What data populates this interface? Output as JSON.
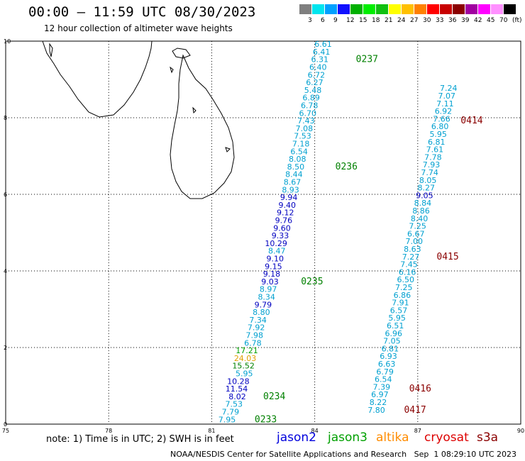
{
  "title": "00:00 – 11:59 UTC 08/30/2023",
  "subtitle": "12 hour collection of altimeter wave heights",
  "colorbar": {
    "labels": [
      "3",
      "6",
      "9",
      "12",
      "15",
      "18",
      "21",
      "24",
      "27",
      "30",
      "33",
      "36",
      "39",
      "42",
      "45",
      "70",
      "(ft)"
    ],
    "colors": [
      "#7f7f7f",
      "#00e5ee",
      "#00a0ff",
      "#1010ff",
      "#00b000",
      "#00ee00",
      "#10c010",
      "#ffff00",
      "#ffc000",
      "#ff8000",
      "#ff0000",
      "#c80000",
      "#8b0000",
      "#a000a0",
      "#ff00ff",
      "#ff90ff",
      "#000000"
    ]
  },
  "axes": {
    "x_ticks": [
      "75",
      "78",
      "81",
      "84",
      "87",
      "90"
    ],
    "y_ticks": [
      "0",
      "2",
      "4",
      "6",
      "8",
      "10"
    ]
  },
  "tracks": [
    {
      "pass": "0233",
      "values": [
        {
          "lat": 0.05,
          "lon": 81.7,
          "v": "7.95",
          "c": "#00a0d0"
        },
        {
          "lat": 0.25,
          "lon": 81.8,
          "v": "7.79",
          "c": "#00a0d0"
        },
        {
          "lat": 0.45,
          "lon": 81.9,
          "v": "7.53",
          "c": "#00a0d0"
        },
        {
          "lat": 0.65,
          "lon": 82.0,
          "v": "8.02",
          "c": "#0000c0"
        },
        {
          "lat": 0.85,
          "lon": 82.05,
          "v": "11.54",
          "c": "#0000c0"
        },
        {
          "lat": 1.05,
          "lon": 82.1,
          "v": "10.28",
          "c": "#0000c0"
        },
        {
          "lat": 1.25,
          "lon": 82.2,
          "v": "5.95",
          "c": "#00a0d0"
        },
        {
          "lat": 1.45,
          "lon": 82.25,
          "v": "15.52",
          "c": "#008000"
        },
        {
          "lat": 1.65,
          "lon": 82.3,
          "v": "24.03",
          "c": "#e0a000"
        },
        {
          "lat": 1.85,
          "lon": 82.35,
          "v": "17.21",
          "c": "#00a000"
        },
        {
          "lat": 2.05,
          "lon": 82.45,
          "v": "6.78",
          "c": "#00a0d0"
        },
        {
          "lat": 2.25,
          "lon": 82.5,
          "v": "7.98",
          "c": "#00a0d0"
        },
        {
          "lat": 2.45,
          "lon": 82.55,
          "v": "7.92",
          "c": "#00a0d0"
        },
        {
          "lat": 2.65,
          "lon": 82.6,
          "v": "7.34",
          "c": "#00a0d0"
        },
        {
          "lat": 2.85,
          "lon": 82.7,
          "v": "8.80",
          "c": "#00a0d0"
        },
        {
          "lat": 3.05,
          "lon": 82.75,
          "v": "9.79",
          "c": "#0000c0"
        },
        {
          "lat": 3.25,
          "lon": 82.85,
          "v": "8.34",
          "c": "#00a0d0"
        },
        {
          "lat": 3.45,
          "lon": 82.9,
          "v": "8.97",
          "c": "#00a0d0"
        },
        {
          "lat": 3.65,
          "lon": 82.95,
          "v": "9.03",
          "c": "#0000c0"
        },
        {
          "lat": 3.85,
          "lon": 83.0,
          "v": "9.18",
          "c": "#0000c0"
        },
        {
          "lat": 4.05,
          "lon": 83.05,
          "v": "9.15",
          "c": "#0000c0"
        },
        {
          "lat": 4.25,
          "lon": 83.1,
          "v": "9.10",
          "c": "#0000c0"
        },
        {
          "lat": 4.45,
          "lon": 83.15,
          "v": "8.47",
          "c": "#00a0d0"
        },
        {
          "lat": 4.65,
          "lon": 83.2,
          "v": "10.29",
          "c": "#0000c0"
        },
        {
          "lat": 4.85,
          "lon": 83.25,
          "v": "9.33",
          "c": "#0000c0"
        },
        {
          "lat": 5.05,
          "lon": 83.3,
          "v": "9.60",
          "c": "#0000c0"
        },
        {
          "lat": 5.25,
          "lon": 83.35,
          "v": "9.76",
          "c": "#0000c0"
        },
        {
          "lat": 5.45,
          "lon": 83.4,
          "v": "9.12",
          "c": "#0000c0"
        },
        {
          "lat": 5.65,
          "lon": 83.45,
          "v": "9.40",
          "c": "#0000c0"
        },
        {
          "lat": 5.85,
          "lon": 83.5,
          "v": "9.94",
          "c": "#0000c0"
        },
        {
          "lat": 6.05,
          "lon": 83.55,
          "v": "8.93",
          "c": "#00a0d0"
        },
        {
          "lat": 6.25,
          "lon": 83.6,
          "v": "8.67",
          "c": "#00a0d0"
        },
        {
          "lat": 6.45,
          "lon": 83.65,
          "v": "8.44",
          "c": "#00a0d0"
        },
        {
          "lat": 6.65,
          "lon": 83.7,
          "v": "8.50",
          "c": "#00a0d0"
        },
        {
          "lat": 6.85,
          "lon": 83.75,
          "v": "8.08",
          "c": "#00a0d0"
        },
        {
          "lat": 7.05,
          "lon": 83.8,
          "v": "6.54",
          "c": "#00a0d0"
        },
        {
          "lat": 7.25,
          "lon": 83.85,
          "v": "7.18",
          "c": "#00a0d0"
        },
        {
          "lat": 7.45,
          "lon": 83.9,
          "v": "7.53",
          "c": "#00a0d0"
        },
        {
          "lat": 7.65,
          "lon": 83.95,
          "v": "7.08",
          "c": "#00a0d0"
        },
        {
          "lat": 7.85,
          "lon": 84.0,
          "v": "7.43",
          "c": "#00a0d0"
        },
        {
          "lat": 8.05,
          "lon": 84.05,
          "v": "6.70",
          "c": "#00a0d0"
        },
        {
          "lat": 8.25,
          "lon": 84.1,
          "v": "6.78",
          "c": "#00a0d0"
        },
        {
          "lat": 8.45,
          "lon": 84.15,
          "v": "6.89",
          "c": "#00a0d0"
        },
        {
          "lat": 8.65,
          "lon": 84.2,
          "v": "5.48",
          "c": "#00a0d0"
        },
        {
          "lat": 8.85,
          "lon": 84.25,
          "v": "6.27",
          "c": "#00a0d0"
        },
        {
          "lat": 9.05,
          "lon": 84.3,
          "v": "6.72",
          "c": "#00a0d0"
        },
        {
          "lat": 9.25,
          "lon": 84.35,
          "v": "6.40",
          "c": "#00a0d0"
        },
        {
          "lat": 9.45,
          "lon": 84.4,
          "v": "6.31",
          "c": "#00a0d0"
        },
        {
          "lat": 9.65,
          "lon": 84.45,
          "v": "6.41",
          "c": "#00a0d0"
        },
        {
          "lat": 9.85,
          "lon": 84.5,
          "v": "6.61",
          "c": "#00a0d0"
        }
      ]
    },
    {
      "pass": "0416",
      "values": [
        {
          "lat": 0.3,
          "lon": 86.05,
          "v": "7.80",
          "c": "#00a0d0"
        },
        {
          "lat": 0.5,
          "lon": 86.1,
          "v": "8.22",
          "c": "#00a0d0"
        },
        {
          "lat": 0.7,
          "lon": 86.15,
          "v": "6.97",
          "c": "#00a0d0"
        },
        {
          "lat": 0.9,
          "lon": 86.2,
          "v": "7.39",
          "c": "#00a0d0"
        },
        {
          "lat": 1.1,
          "lon": 86.25,
          "v": "6.54",
          "c": "#00a0d0"
        },
        {
          "lat": 1.3,
          "lon": 86.3,
          "v": "6.79",
          "c": "#00a0d0"
        },
        {
          "lat": 1.5,
          "lon": 86.35,
          "v": "6.63",
          "c": "#00a0d0"
        },
        {
          "lat": 1.7,
          "lon": 86.4,
          "v": "6.93",
          "c": "#00a0d0"
        },
        {
          "lat": 1.9,
          "lon": 86.45,
          "v": "6.81",
          "c": "#00a0d0"
        },
        {
          "lat": 2.1,
          "lon": 86.5,
          "v": "7.05",
          "c": "#00a0d0"
        },
        {
          "lat": 2.3,
          "lon": 86.55,
          "v": "6.96",
          "c": "#00a0d0"
        },
        {
          "lat": 2.5,
          "lon": 86.6,
          "v": "6.51",
          "c": "#00a0d0"
        },
        {
          "lat": 2.7,
          "lon": 86.65,
          "v": "5.95",
          "c": "#00a0d0"
        },
        {
          "lat": 2.9,
          "lon": 86.7,
          "v": "6.57",
          "c": "#00a0d0"
        },
        {
          "lat": 3.1,
          "lon": 86.75,
          "v": "7.91",
          "c": "#00a0d0"
        },
        {
          "lat": 3.3,
          "lon": 86.8,
          "v": "6.86",
          "c": "#00a0d0"
        },
        {
          "lat": 3.5,
          "lon": 86.85,
          "v": "7.25",
          "c": "#00a0d0"
        },
        {
          "lat": 3.7,
          "lon": 86.9,
          "v": "6.50",
          "c": "#00a0d0"
        },
        {
          "lat": 3.9,
          "lon": 86.95,
          "v": "6.16",
          "c": "#00a0d0"
        },
        {
          "lat": 4.1,
          "lon": 87.0,
          "v": "7.45",
          "c": "#00a0d0"
        },
        {
          "lat": 4.3,
          "lon": 87.05,
          "v": "7.27",
          "c": "#00a0d0"
        },
        {
          "lat": 4.5,
          "lon": 87.1,
          "v": "8.63",
          "c": "#00a0d0"
        },
        {
          "lat": 4.7,
          "lon": 87.15,
          "v": "7.00",
          "c": "#00a0d0"
        },
        {
          "lat": 4.9,
          "lon": 87.2,
          "v": "6.67",
          "c": "#00a0d0"
        },
        {
          "lat": 5.1,
          "lon": 87.25,
          "v": "7.25",
          "c": "#00a0d0"
        },
        {
          "lat": 5.3,
          "lon": 87.3,
          "v": "8.40",
          "c": "#00a0d0"
        },
        {
          "lat": 5.5,
          "lon": 87.35,
          "v": "8.86",
          "c": "#00a0d0"
        },
        {
          "lat": 5.7,
          "lon": 87.4,
          "v": "8.84",
          "c": "#00a0d0"
        },
        {
          "lat": 5.9,
          "lon": 87.45,
          "v": "9.05",
          "c": "#0000c0"
        },
        {
          "lat": 6.1,
          "lon": 87.5,
          "v": "8.27",
          "c": "#00a0d0"
        },
        {
          "lat": 6.3,
          "lon": 87.55,
          "v": "8.05",
          "c": "#00a0d0"
        },
        {
          "lat": 6.5,
          "lon": 87.6,
          "v": "7.74",
          "c": "#00a0d0"
        },
        {
          "lat": 6.7,
          "lon": 87.65,
          "v": "7.93",
          "c": "#00a0d0"
        },
        {
          "lat": 6.9,
          "lon": 87.7,
          "v": "7.78",
          "c": "#00a0d0"
        },
        {
          "lat": 7.1,
          "lon": 87.75,
          "v": "7.61",
          "c": "#00a0d0"
        },
        {
          "lat": 7.3,
          "lon": 87.8,
          "v": "6.81",
          "c": "#00a0d0"
        },
        {
          "lat": 7.5,
          "lon": 87.85,
          "v": "5.95",
          "c": "#00a0d0"
        },
        {
          "lat": 7.7,
          "lon": 87.9,
          "v": "6.80",
          "c": "#00a0d0"
        },
        {
          "lat": 7.9,
          "lon": 87.95,
          "v": "7.66",
          "c": "#00a0d0"
        },
        {
          "lat": 8.1,
          "lon": 88.0,
          "v": "6.92",
          "c": "#00a0d0"
        },
        {
          "lat": 8.3,
          "lon": 88.05,
          "v": "7.11",
          "c": "#00a0d0"
        },
        {
          "lat": 8.5,
          "lon": 88.1,
          "v": "7.07",
          "c": "#00a0d0"
        },
        {
          "lat": 8.7,
          "lon": 88.15,
          "v": "7.24",
          "c": "#00a0d0"
        }
      ]
    }
  ],
  "pass_labels": [
    {
      "text": "0233",
      "color": "#008000",
      "lat": 0.05,
      "lon": 82.25
    },
    {
      "text": "0234",
      "color": "#008000",
      "lat": 0.65,
      "lon": 82.5
    },
    {
      "text": "0235",
      "color": "#008000",
      "lat": 3.65,
      "lon": 83.6
    },
    {
      "text": "0236",
      "color": "#008000",
      "lat": 6.65,
      "lon": 84.6
    },
    {
      "text": "0237",
      "color": "#008000",
      "lat": 9.45,
      "lon": 85.2
    },
    {
      "text": "0417",
      "color": "#8b0000",
      "lat": 0.3,
      "lon": 86.6
    },
    {
      "text": "0416",
      "color": "#8b0000",
      "lat": 0.85,
      "lon": 86.75
    },
    {
      "text": "0415",
      "color": "#8b0000",
      "lat": 4.3,
      "lon": 87.55
    },
    {
      "text": "0414",
      "color": "#8b0000",
      "lat": 7.85,
      "lon": 88.25
    }
  ],
  "note": "note: 1) Time is in UTC; 2) SWH is in feet",
  "missions": [
    {
      "name": "jason2",
      "color": "#0000dd"
    },
    {
      "name": "jason3",
      "color": "#00a000"
    },
    {
      "name": "altika",
      "color": "#ff8c00"
    },
    {
      "name": "cryosat",
      "color": "#dd0000"
    },
    {
      "name": "s3a",
      "color": "#8b0000"
    }
  ],
  "credit": "NOAA/NESDIS Center for Satellite Applications and Research   Sep  1 08:29:10 UTC 2023"
}
